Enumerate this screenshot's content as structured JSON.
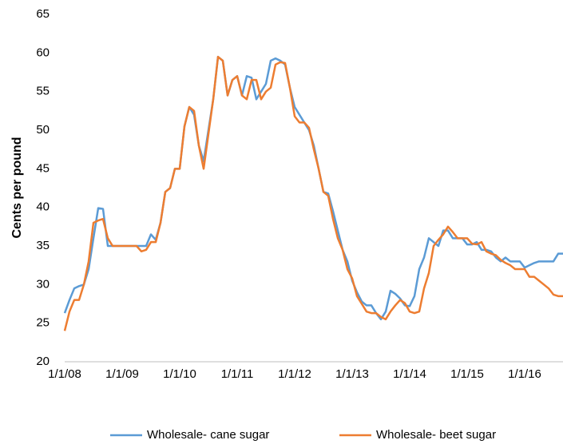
{
  "chart_data": {
    "type": "line",
    "y_label": "Cents per pound",
    "categories": [
      "1/1/08",
      null,
      null,
      null,
      null,
      null,
      null,
      null,
      null,
      null,
      null,
      null,
      "1/1/09",
      null,
      null,
      null,
      null,
      null,
      null,
      null,
      null,
      null,
      null,
      null,
      "1/1/10",
      null,
      null,
      null,
      null,
      null,
      null,
      null,
      null,
      null,
      null,
      null,
      "1/1/11",
      null,
      null,
      null,
      null,
      null,
      null,
      null,
      null,
      null,
      null,
      null,
      "1/1/12",
      null,
      null,
      null,
      null,
      null,
      null,
      null,
      null,
      null,
      null,
      null,
      "1/1/13",
      null,
      null,
      null,
      null,
      null,
      null,
      null,
      null,
      null,
      null,
      null,
      "1/1/14",
      null,
      null,
      null,
      null,
      null,
      null,
      null,
      null,
      null,
      null,
      null,
      "1/1/15",
      null,
      null,
      null,
      null,
      null,
      null,
      null,
      null,
      null,
      null,
      null,
      "1/1/16",
      null,
      null,
      null,
      null,
      null,
      null,
      null,
      null
    ],
    "series": [
      {
        "name": "Wholesale- cane sugar",
        "color": "#5b9bd5",
        "values": [
          26.3,
          28,
          29.5,
          29.8,
          30,
          32,
          36,
          39.9,
          39.8,
          35,
          35,
          35,
          35,
          35,
          35,
          35,
          35,
          35,
          36.5,
          35.8,
          38,
          42,
          42.5,
          45,
          45,
          50.5,
          53,
          52,
          48,
          46,
          50,
          54,
          59.5,
          59,
          54.5,
          56.5,
          57,
          54.5,
          57,
          56.8,
          54,
          55,
          56,
          59,
          59.3,
          59,
          58.5,
          55.5,
          53,
          52,
          51,
          50,
          48,
          45,
          42,
          41.8,
          39.5,
          37,
          34.5,
          33,
          30.5,
          29,
          27.8,
          27.3,
          27.3,
          26.3,
          25.5,
          26.5,
          29.2,
          28.8,
          28.2,
          27.3,
          27.2,
          28.5,
          32,
          33.5,
          36,
          35.5,
          35,
          37,
          37,
          36,
          36,
          36,
          35.2,
          35.2,
          35.5,
          34.5,
          34.5,
          34.3,
          33.5,
          33,
          33.5,
          33,
          33,
          33,
          32.2,
          32.5,
          32.8,
          33,
          33,
          33,
          33,
          34,
          34
        ]
      },
      {
        "name": "Wholesale- beet sugar",
        "color": "#ed7d31",
        "values": [
          24,
          26.5,
          28,
          28,
          30,
          33,
          38,
          38.3,
          38.5,
          36,
          35,
          35,
          35,
          35,
          35,
          35,
          34.3,
          34.5,
          35.5,
          35.5,
          38,
          42,
          42.5,
          45,
          45,
          50.5,
          53,
          52.5,
          48,
          45,
          49.5,
          54,
          59.5,
          59,
          54.5,
          56.5,
          57,
          54.5,
          54,
          56.5,
          56.5,
          54,
          55,
          55.5,
          58.5,
          58.8,
          58.7,
          55.5,
          51.8,
          51,
          51,
          50.3,
          47.5,
          45,
          42,
          41.5,
          38.5,
          36,
          34.5,
          32,
          30.8,
          28.5,
          27.5,
          26.5,
          26.3,
          26.3,
          25.8,
          25.5,
          26.5,
          27.3,
          28,
          27.6,
          26.5,
          26.3,
          26.5,
          29.5,
          31.5,
          35,
          35.8,
          36.5,
          37.5,
          36.8,
          36,
          36,
          36,
          35.3,
          35.2,
          35.5,
          34.3,
          34,
          33.8,
          33.2,
          32.8,
          32.5,
          32,
          32,
          32,
          31,
          31,
          30.5,
          30,
          29.5,
          28.7,
          28.5,
          28.5
        ]
      }
    ],
    "ylim": [
      20,
      65
    ],
    "yticks": [
      20,
      25,
      30,
      35,
      40,
      45,
      50,
      55,
      60,
      65
    ],
    "grid": false,
    "legend": "bottom"
  }
}
